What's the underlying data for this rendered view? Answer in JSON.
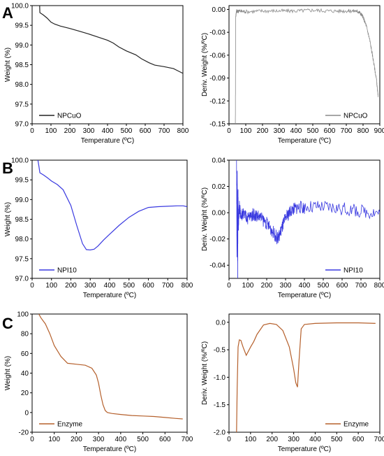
{
  "panel_letters": [
    "A",
    "B",
    "C"
  ],
  "chart_data": [
    {
      "id": "A-weight",
      "type": "line",
      "xlabel": "Temperature (ºC)",
      "ylabel": "Weight (%)",
      "xlim": [
        0,
        800
      ],
      "ylim": [
        97.0,
        100.0
      ],
      "xticks": [
        "0",
        "100",
        "200",
        "300",
        "400",
        "500",
        "600",
        "700",
        "800"
      ],
      "yticks": [
        "97.0",
        "97.5",
        "98.0",
        "98.5",
        "99.0",
        "99.5",
        "100.0"
      ],
      "legend_position": "bottom-left",
      "color": "#222222",
      "series": [
        {
          "name": "NPCuO",
          "x": [
            40,
            41,
            60,
            80,
            100,
            120,
            150,
            200,
            250,
            300,
            350,
            400,
            430,
            460,
            500,
            550,
            580,
            620,
            650,
            700,
            750,
            800
          ],
          "y": [
            100.0,
            99.82,
            99.76,
            99.68,
            99.58,
            99.53,
            99.48,
            99.42,
            99.35,
            99.28,
            99.2,
            99.12,
            99.05,
            98.95,
            98.85,
            98.75,
            98.65,
            98.55,
            98.49,
            98.45,
            98.4,
            98.28
          ]
        }
      ]
    },
    {
      "id": "A-deriv",
      "type": "line",
      "xlabel": "Temperature (ºC)",
      "ylabel": "Deriv. Weight (%/ºC)",
      "xlim": [
        0,
        900
      ],
      "ylim": [
        -0.15,
        0.005
      ],
      "xticks": [
        "0",
        "100",
        "200",
        "300",
        "400",
        "500",
        "600",
        "700",
        "800",
        "900"
      ],
      "yticks": [
        "0.00",
        "-0.03",
        "-0.06",
        "-0.09",
        "-0.12",
        "-0.15"
      ],
      "legend_position": "bottom-right",
      "color": "#8a8a8a",
      "noise_amplitude": 0.0025,
      "series": [
        {
          "name": "NPCuO",
          "x": [
            38,
            40,
            45,
            50,
            60,
            100,
            200,
            300,
            400,
            500,
            600,
            700,
            760,
            780,
            800,
            820,
            840,
            860,
            880,
            890
          ],
          "y": [
            -0.15,
            -0.01,
            -0.001,
            -0.003,
            -0.002,
            -0.003,
            -0.002,
            -0.002,
            -0.002,
            -0.001,
            -0.002,
            -0.002,
            -0.002,
            -0.004,
            -0.01,
            -0.022,
            -0.04,
            -0.065,
            -0.092,
            -0.115
          ]
        }
      ]
    },
    {
      "id": "B-weight",
      "type": "line",
      "xlabel": "Temperature (ºC)",
      "ylabel": "Weight (%)",
      "xlim": [
        0,
        800
      ],
      "ylim": [
        97.0,
        100.0
      ],
      "xticks": [
        "0",
        "100",
        "200",
        "300",
        "400",
        "500",
        "600",
        "700",
        "800"
      ],
      "yticks": [
        "97.0",
        "97.5",
        "98.0",
        "98.5",
        "99.0",
        "99.5",
        "100.0"
      ],
      "legend_position": "bottom-left",
      "color": "#3a3ae0",
      "series": [
        {
          "name": "NPI10",
          "x": [
            30,
            35,
            40,
            60,
            80,
            100,
            130,
            160,
            200,
            230,
            260,
            280,
            300,
            320,
            340,
            370,
            400,
            450,
            500,
            550,
            600,
            650,
            700,
            750,
            780,
            800
          ],
          "y": [
            100.0,
            99.85,
            99.68,
            99.62,
            99.55,
            99.47,
            99.38,
            99.25,
            98.85,
            98.35,
            97.88,
            97.73,
            97.72,
            97.74,
            97.82,
            97.98,
            98.12,
            98.35,
            98.55,
            98.7,
            98.8,
            98.82,
            98.83,
            98.84,
            98.84,
            98.82
          ]
        }
      ]
    },
    {
      "id": "B-deriv",
      "type": "line",
      "xlabel": "Temperature (ºC)",
      "ylabel": "Deriv. Weight (%/ºC)",
      "xlim": [
        0,
        800
      ],
      "ylim": [
        -0.05,
        0.04
      ],
      "xticks": [
        "0",
        "100",
        "200",
        "300",
        "400",
        "500",
        "600",
        "700",
        "800"
      ],
      "yticks": [
        "0.04",
        "0.02",
        "0.00",
        "-0.02",
        "-0.04"
      ],
      "legend_position": "bottom-right",
      "color": "#3a3ae0",
      "noise_amplitude": 0.005,
      "series": [
        {
          "name": "NPI10",
          "x": [
            40,
            42,
            44,
            46,
            48,
            50,
            55,
            60,
            80,
            100,
            130,
            160,
            200,
            230,
            260,
            280,
            300,
            330,
            360,
            400,
            500,
            600,
            700,
            800
          ],
          "y": [
            0.04,
            -0.03,
            0.03,
            -0.05,
            0.015,
            -0.01,
            0.005,
            0.0,
            -0.002,
            -0.004,
            -0.001,
            -0.003,
            -0.008,
            -0.014,
            -0.02,
            -0.012,
            -0.004,
            0.002,
            0.004,
            0.004,
            0.004,
            0.003,
            0.001,
            0.0
          ]
        }
      ]
    },
    {
      "id": "C-weight",
      "type": "line",
      "xlabel": "Temperature (ºC)",
      "ylabel": "Weight (%)",
      "xlim": [
        0,
        700
      ],
      "ylim": [
        -20,
        100
      ],
      "xticks": [
        "0",
        "100",
        "200",
        "300",
        "400",
        "500",
        "600",
        "700"
      ],
      "yticks": [
        "-20",
        "0",
        "20",
        "40",
        "60",
        "80",
        "100"
      ],
      "legend_position": "bottom-left",
      "color": "#b5602c",
      "series": [
        {
          "name": "Enzyme",
          "x": [
            30,
            40,
            60,
            80,
            100,
            130,
            160,
            200,
            240,
            270,
            290,
            300,
            310,
            320,
            330,
            340,
            360,
            400,
            450,
            500,
            550,
            600,
            650,
            680
          ],
          "y": [
            100,
            96,
            90,
            80,
            68,
            57,
            50,
            49,
            48,
            45,
            38,
            30,
            18,
            8,
            2,
            0,
            -1,
            -2,
            -3,
            -3.5,
            -4,
            -5,
            -6,
            -6.5
          ]
        }
      ]
    },
    {
      "id": "C-deriv",
      "type": "line",
      "xlabel": "Temperature (ºC)",
      "ylabel": "Deriv. Weight (%/ºC)",
      "xlim": [
        0,
        700
      ],
      "ylim": [
        -2.0,
        0.15
      ],
      "xticks": [
        "0",
        "100",
        "200",
        "300",
        "400",
        "500",
        "600",
        "700"
      ],
      "yticks": [
        "0.0",
        "-0.5",
        "-1.0",
        "-1.5",
        "-2.0"
      ],
      "legend_position": "bottom-right",
      "color": "#b5602c",
      "series": [
        {
          "name": "Enzyme",
          "x": [
            35,
            38,
            42,
            48,
            55,
            65,
            80,
            100,
            115,
            130,
            160,
            190,
            220,
            250,
            280,
            300,
            310,
            318,
            325,
            335,
            350,
            400,
            500,
            600,
            680
          ],
          "y": [
            -2.0,
            -1.2,
            -0.45,
            -0.32,
            -0.33,
            -0.45,
            -0.6,
            -0.45,
            -0.35,
            -0.22,
            -0.05,
            -0.02,
            -0.04,
            -0.15,
            -0.45,
            -0.85,
            -1.1,
            -1.18,
            -0.7,
            -0.12,
            -0.04,
            -0.02,
            -0.01,
            -0.01,
            -0.02
          ]
        }
      ]
    }
  ]
}
